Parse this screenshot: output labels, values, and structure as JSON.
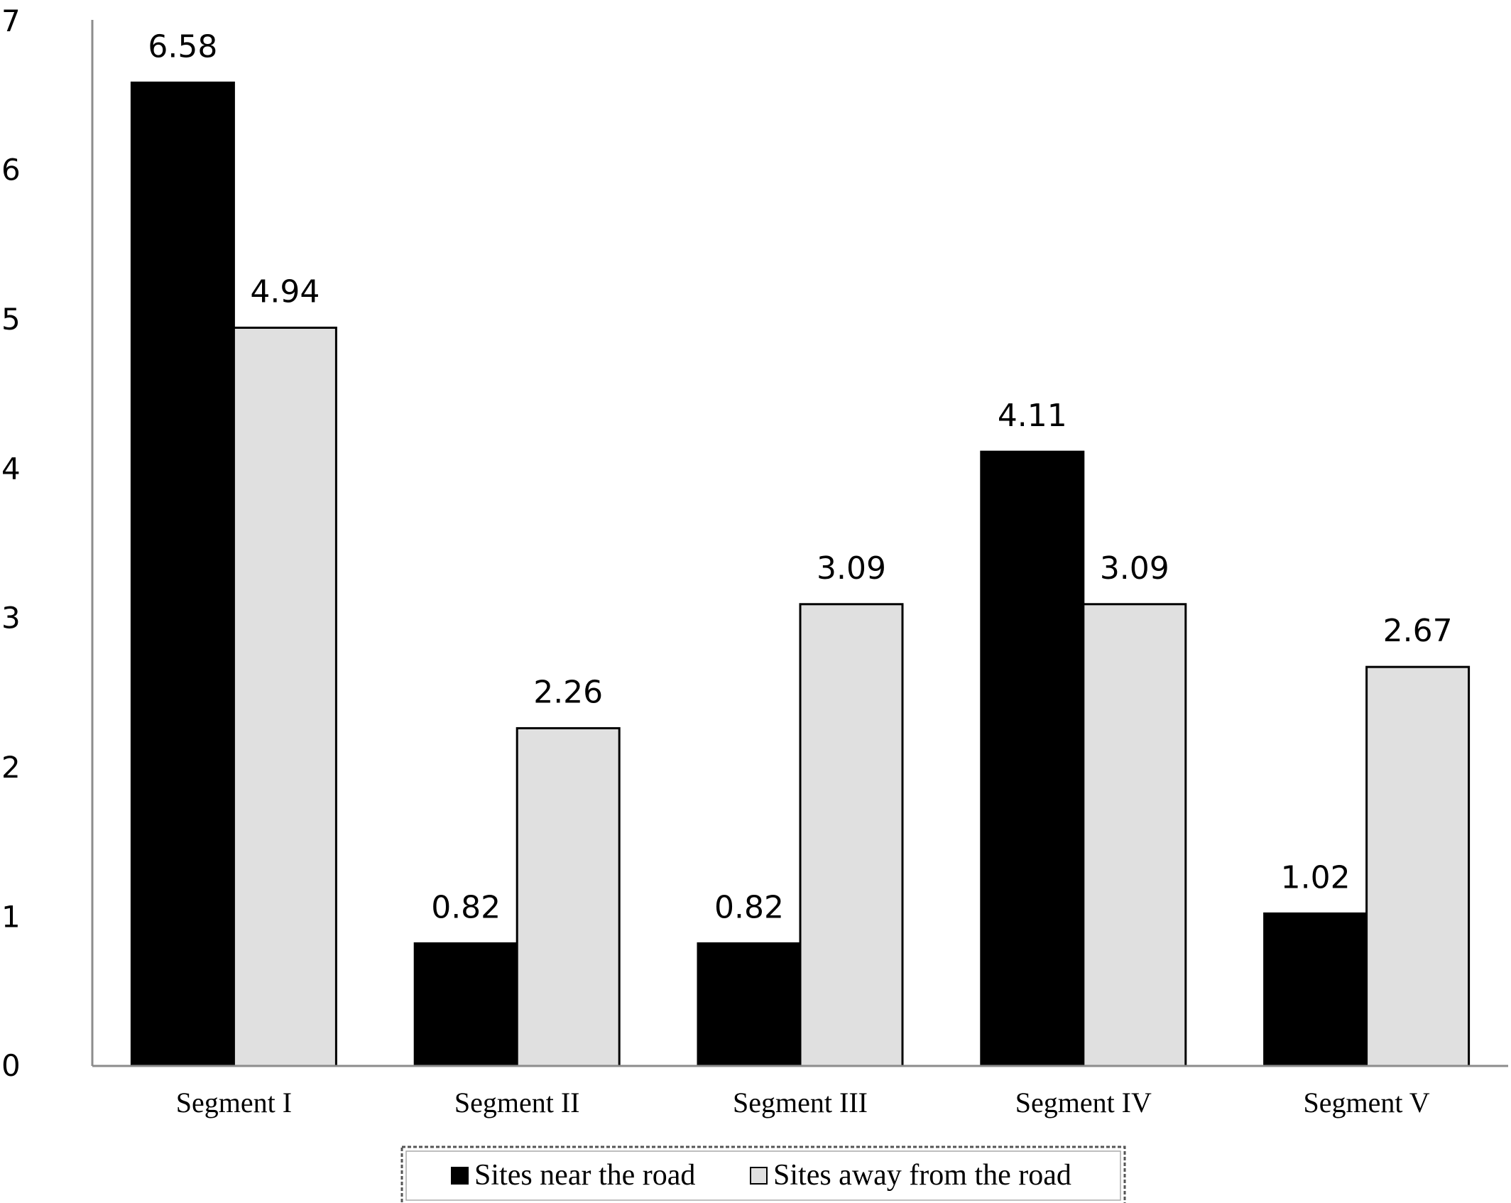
{
  "chart_data": {
    "type": "bar",
    "title": "",
    "xlabel": "",
    "ylabel": "",
    "ylim": [
      0,
      7
    ],
    "yticks": [
      "0",
      "1",
      "2",
      "3",
      "4",
      "5",
      "6",
      "7"
    ],
    "grid": false,
    "legend_position": "bottom",
    "categories": [
      "Segment I",
      "Segment II",
      "Segment III",
      "Segment IV",
      "Segment V"
    ],
    "series": [
      {
        "name": "Sites near the road",
        "color": "#000000",
        "values": [
          6.58,
          0.82,
          0.82,
          4.11,
          1.02
        ],
        "labels": [
          "6.58",
          "0.82",
          "0.82",
          "4.11",
          "1.02"
        ]
      },
      {
        "name": "Sites away from the road",
        "color": "#e0e0e0",
        "values": [
          4.94,
          2.26,
          3.09,
          3.09,
          2.67
        ],
        "labels": [
          "4.94",
          "2.26",
          "3.09",
          "3.09",
          "2.67"
        ]
      }
    ]
  }
}
